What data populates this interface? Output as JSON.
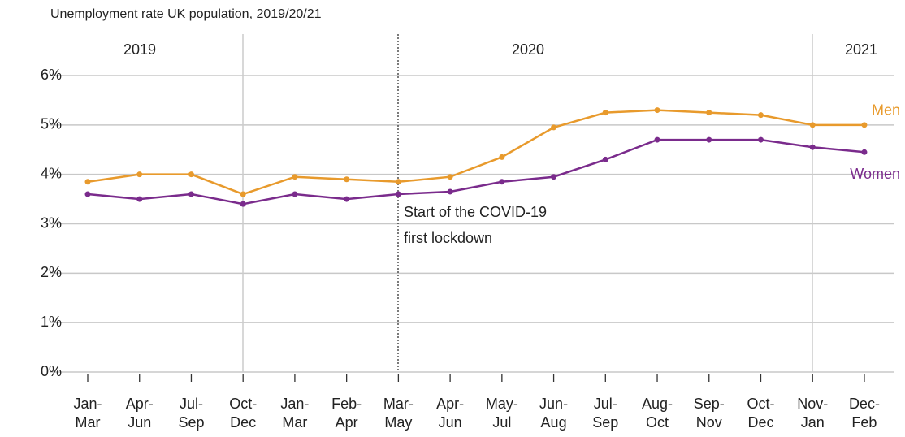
{
  "chart_data": {
    "type": "line",
    "title": "Unemployment rate UK population, 2019/20/21",
    "periods": [
      "2019",
      "2020",
      "2021"
    ],
    "annotation": [
      "Start of the COVID-19",
      "first lockdown"
    ],
    "categories": [
      [
        "Jan-",
        "Mar"
      ],
      [
        "Apr-",
        "Jun"
      ],
      [
        "Jul-",
        "Sep"
      ],
      [
        "Oct-",
        "Dec"
      ],
      [
        "Jan-",
        "Mar"
      ],
      [
        "Feb-",
        "Apr"
      ],
      [
        "Mar-",
        "May"
      ],
      [
        "Apr-",
        "Jun"
      ],
      [
        "May-",
        "Jul"
      ],
      [
        "Jun-",
        "Aug"
      ],
      [
        "Jul-",
        "Sep"
      ],
      [
        "Aug-",
        "Oct"
      ],
      [
        "Sep-",
        "Nov"
      ],
      [
        "Oct-",
        "Dec"
      ],
      [
        "Nov-",
        "Jan"
      ],
      [
        "Dec-",
        "Feb"
      ]
    ],
    "series": [
      {
        "name": "Men",
        "color": "#e89a2c",
        "values": [
          3.85,
          4.0,
          4.0,
          3.6,
          3.95,
          3.9,
          3.85,
          3.95,
          4.35,
          4.95,
          5.25,
          5.3,
          5.25,
          5.2,
          5.0,
          5.0
        ]
      },
      {
        "name": "Women",
        "color": "#7a2b8c",
        "values": [
          3.6,
          3.5,
          3.6,
          3.4,
          3.6,
          3.5,
          3.6,
          3.65,
          3.85,
          3.95,
          4.3,
          4.7,
          4.7,
          4.7,
          4.55,
          4.45
        ]
      }
    ],
    "ylim": [
      0,
      6
    ],
    "yticks": [
      {
        "value": 0,
        "label": "0%"
      },
      {
        "value": 1,
        "label": "1%"
      },
      {
        "value": 2,
        "label": "2%"
      },
      {
        "value": 3,
        "label": "3%"
      },
      {
        "value": 4,
        "label": "4%"
      },
      {
        "value": 5,
        "label": "5%"
      },
      {
        "value": 6,
        "label": "6%"
      }
    ],
    "grid": true
  }
}
